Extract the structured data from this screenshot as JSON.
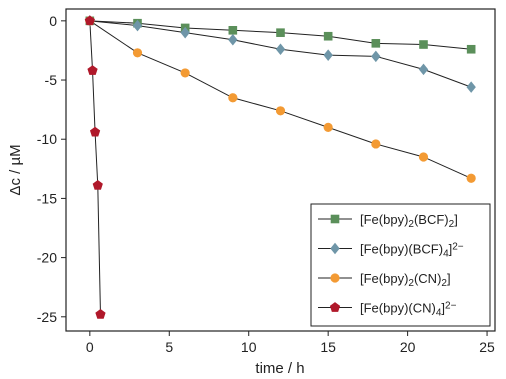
{
  "chart_data": {
    "type": "scatter",
    "xlabel": "time / h",
    "ylabel": "Δc / µM",
    "xlim": [
      -1.5,
      25.5
    ],
    "ylim": [
      -26.2,
      1
    ],
    "xticks": [
      0,
      5,
      10,
      15,
      20,
      25
    ],
    "yticks": [
      0,
      -5,
      -10,
      -15,
      -20,
      -25
    ],
    "legend_position": "bottom-right",
    "series": [
      {
        "id": "bcf2",
        "label_parts": [
          [
            "[Fe(bpy)",
            "n"
          ],
          [
            "2",
            "sub"
          ],
          [
            "(BCF)",
            "n"
          ],
          [
            "2",
            "sub"
          ],
          [
            "]",
            "n"
          ]
        ],
        "color": "#5b8f5a",
        "marker": "square",
        "x": [
          0,
          3,
          6,
          9,
          12,
          15,
          18,
          21,
          24
        ],
        "y": [
          0,
          -0.2,
          -0.6,
          -0.8,
          -1.0,
          -1.3,
          -1.9,
          -2.0,
          -2.4
        ]
      },
      {
        "id": "bcf4",
        "label_parts": [
          [
            "[Fe(bpy)(BCF)",
            "n"
          ],
          [
            "4",
            "sub"
          ],
          [
            "]",
            "n"
          ],
          [
            "2−",
            "sup"
          ]
        ],
        "color": "#6f96a8",
        "marker": "diamond",
        "x": [
          0,
          3,
          6,
          9,
          12,
          15,
          18,
          21,
          24
        ],
        "y": [
          0,
          -0.4,
          -1.0,
          -1.6,
          -2.4,
          -2.9,
          -3.0,
          -4.1,
          -5.6
        ]
      },
      {
        "id": "cn2",
        "label_parts": [
          [
            "[Fe(bpy)",
            "n"
          ],
          [
            "2",
            "sub"
          ],
          [
            "(CN)",
            "n"
          ],
          [
            "2",
            "sub"
          ],
          [
            "]",
            "n"
          ]
        ],
        "color": "#f39a33",
        "marker": "circle",
        "x": [
          0,
          3,
          6,
          9,
          12,
          15,
          18,
          21,
          24
        ],
        "y": [
          0,
          -2.7,
          -4.4,
          -6.5,
          -7.6,
          -9.0,
          -10.4,
          -11.5,
          -13.3
        ]
      },
      {
        "id": "cn4",
        "label_parts": [
          [
            "[Fe(bpy)(CN)",
            "n"
          ],
          [
            "4",
            "sub"
          ],
          [
            "]",
            "n"
          ],
          [
            "2−",
            "sup"
          ]
        ],
        "color": "#b0182a",
        "marker": "pentagon",
        "x": [
          0,
          0.17,
          0.33,
          0.5,
          0.67
        ],
        "y": [
          0,
          -4.2,
          -9.4,
          -13.9,
          -24.8
        ]
      }
    ]
  }
}
